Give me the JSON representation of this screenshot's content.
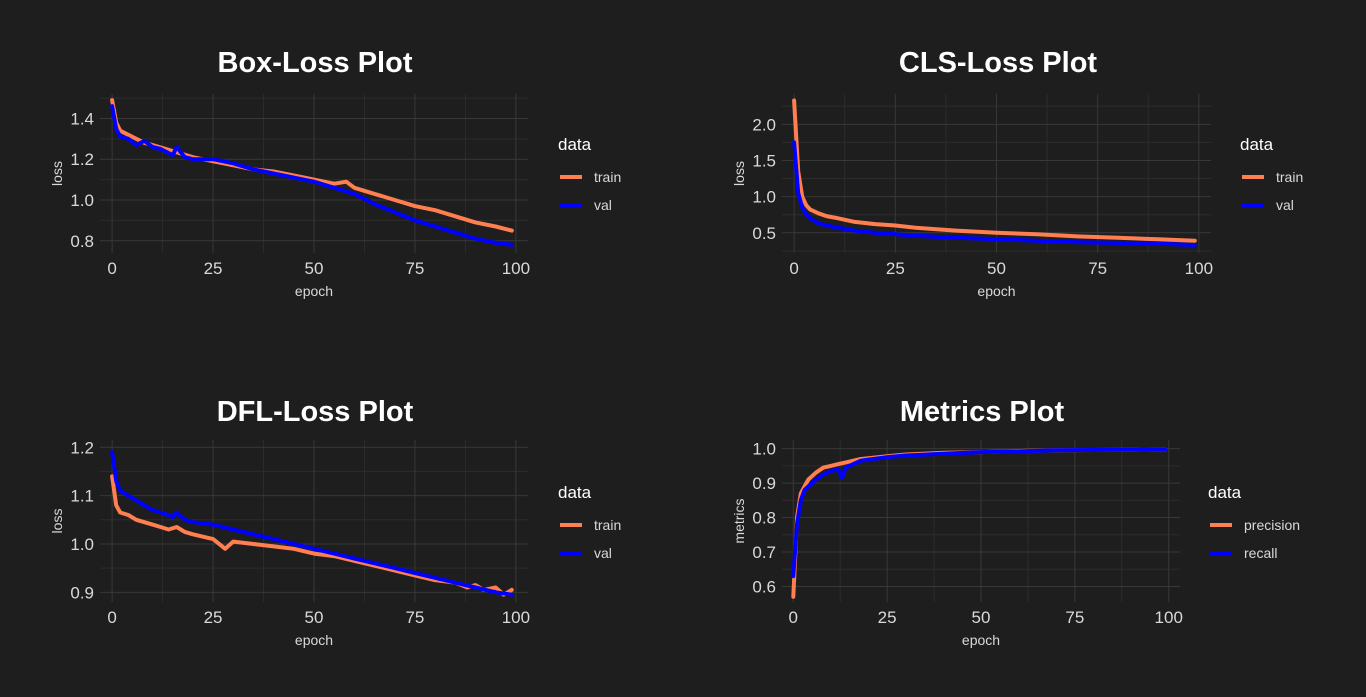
{
  "chart_data": [
    {
      "type": "line",
      "title": "Box-Loss Plot",
      "xlabel": "epoch",
      "ylabel": "loss",
      "xlim": [
        -3,
        103
      ],
      "ylim": [
        0.74,
        1.52
      ],
      "xticks": [
        0,
        25,
        50,
        75,
        100
      ],
      "yticks": [
        0.8,
        1.0,
        1.2,
        1.4
      ],
      "yticklabels": [
        "0.8",
        "1.0",
        "1.2",
        "1.4"
      ],
      "grid": true,
      "legend": {
        "title": "data",
        "placement": "right"
      },
      "series": [
        {
          "name": "train",
          "color": "#ff7f50",
          "x": [
            0,
            1,
            2,
            4,
            6,
            8,
            10,
            15,
            20,
            25,
            30,
            35,
            40,
            45,
            50,
            55,
            58,
            60,
            65,
            70,
            75,
            80,
            85,
            90,
            95,
            99
          ],
          "y": [
            1.49,
            1.38,
            1.34,
            1.32,
            1.3,
            1.28,
            1.27,
            1.24,
            1.21,
            1.19,
            1.17,
            1.15,
            1.14,
            1.12,
            1.1,
            1.08,
            1.09,
            1.06,
            1.03,
            1.0,
            0.97,
            0.95,
            0.92,
            0.89,
            0.87,
            0.85
          ]
        },
        {
          "name": "val",
          "color": "#0000ff",
          "x": [
            0,
            1,
            2,
            4,
            6,
            8,
            10,
            12,
            15,
            16,
            18,
            20,
            25,
            30,
            35,
            40,
            45,
            50,
            55,
            60,
            65,
            70,
            75,
            80,
            85,
            90,
            95,
            99
          ],
          "y": [
            1.46,
            1.35,
            1.31,
            1.3,
            1.27,
            1.29,
            1.26,
            1.25,
            1.22,
            1.26,
            1.21,
            1.2,
            1.2,
            1.18,
            1.15,
            1.13,
            1.11,
            1.09,
            1.06,
            1.03,
            0.98,
            0.94,
            0.9,
            0.87,
            0.84,
            0.81,
            0.79,
            0.78
          ]
        }
      ]
    },
    {
      "type": "line",
      "title": "CLS-Loss Plot",
      "xlabel": "epoch",
      "ylabel": "loss",
      "xlim": [
        -3,
        103
      ],
      "ylim": [
        0.22,
        2.42
      ],
      "xticks": [
        0,
        25,
        50,
        75,
        100
      ],
      "yticks": [
        0.5,
        1.0,
        1.5,
        2.0
      ],
      "yticklabels": [
        "0.5",
        "1.0",
        "1.5",
        "2.0"
      ],
      "grid": true,
      "legend": {
        "title": "data",
        "placement": "right"
      },
      "series": [
        {
          "name": "train",
          "color": "#ff7f50",
          "x": [
            0,
            1,
            2,
            3,
            4,
            6,
            8,
            10,
            15,
            20,
            25,
            30,
            40,
            50,
            60,
            70,
            80,
            90,
            99
          ],
          "y": [
            2.33,
            1.35,
            1.0,
            0.88,
            0.82,
            0.77,
            0.73,
            0.71,
            0.65,
            0.62,
            0.6,
            0.57,
            0.53,
            0.5,
            0.48,
            0.45,
            0.43,
            0.41,
            0.39
          ]
        },
        {
          "name": "val",
          "color": "#0000ff",
          "x": [
            0,
            1,
            2,
            3,
            4,
            6,
            8,
            10,
            15,
            20,
            25,
            30,
            40,
            50,
            60,
            70,
            80,
            90,
            99
          ],
          "y": [
            1.75,
            1.05,
            0.85,
            0.75,
            0.7,
            0.63,
            0.6,
            0.58,
            0.53,
            0.5,
            0.48,
            0.46,
            0.43,
            0.41,
            0.39,
            0.37,
            0.36,
            0.35,
            0.33
          ]
        }
      ]
    },
    {
      "type": "line",
      "title": "DFL-Loss Plot",
      "xlabel": "epoch",
      "ylabel": "loss",
      "xlim": [
        -3,
        103
      ],
      "ylim": [
        0.88,
        1.215
      ],
      "xticks": [
        0,
        25,
        50,
        75,
        100
      ],
      "yticks": [
        0.9,
        1.0,
        1.1,
        1.2
      ],
      "yticklabels": [
        "0.9",
        "1.0",
        "1.1",
        "1.2"
      ],
      "grid": true,
      "legend": {
        "title": "data",
        "placement": "right"
      },
      "series": [
        {
          "name": "train",
          "color": "#ff7f50",
          "x": [
            0,
            1,
            2,
            4,
            6,
            8,
            10,
            12,
            14,
            16,
            18,
            20,
            25,
            28,
            30,
            35,
            40,
            45,
            50,
            55,
            60,
            65,
            70,
            75,
            80,
            85,
            88,
            90,
            92,
            95,
            97,
            99
          ],
          "y": [
            1.14,
            1.08,
            1.065,
            1.06,
            1.05,
            1.045,
            1.04,
            1.035,
            1.03,
            1.035,
            1.025,
            1.02,
            1.01,
            0.99,
            1.005,
            1.0,
            0.995,
            0.99,
            0.98,
            0.975,
            0.965,
            0.955,
            0.945,
            0.935,
            0.925,
            0.92,
            0.91,
            0.915,
            0.905,
            0.91,
            0.895,
            0.905
          ]
        },
        {
          "name": "val",
          "color": "#0000ff",
          "x": [
            0,
            1,
            2,
            4,
            6,
            8,
            10,
            12,
            14,
            15,
            16,
            18,
            20,
            25,
            30,
            35,
            40,
            45,
            50,
            55,
            60,
            65,
            70,
            75,
            80,
            85,
            90,
            95,
            99
          ],
          "y": [
            1.19,
            1.13,
            1.11,
            1.1,
            1.09,
            1.08,
            1.07,
            1.065,
            1.06,
            1.055,
            1.065,
            1.05,
            1.045,
            1.04,
            1.03,
            1.02,
            1.01,
            1.0,
            0.99,
            0.98,
            0.97,
            0.96,
            0.95,
            0.94,
            0.93,
            0.92,
            0.91,
            0.9,
            0.895
          ]
        }
      ]
    },
    {
      "type": "line",
      "title": "Metrics Plot",
      "xlabel": "epoch",
      "ylabel": "metrics",
      "xlim": [
        -3,
        103
      ],
      "ylim": [
        0.555,
        1.025
      ],
      "xticks": [
        0,
        25,
        50,
        75,
        100
      ],
      "yticks": [
        0.6,
        0.7,
        0.8,
        0.9,
        1.0
      ],
      "yticklabels": [
        "0.6",
        "0.7",
        "0.8",
        "0.9",
        "1.0"
      ],
      "grid": true,
      "legend": {
        "title": "data",
        "placement": "right"
      },
      "series": [
        {
          "name": "precision",
          "color": "#ff7f50",
          "x": [
            0,
            1,
            2,
            3,
            4,
            5,
            6,
            8,
            10,
            12,
            14,
            16,
            18,
            20,
            25,
            30,
            40,
            50,
            60,
            70,
            80,
            90,
            99
          ],
          "y": [
            0.57,
            0.8,
            0.87,
            0.89,
            0.91,
            0.92,
            0.93,
            0.945,
            0.95,
            0.955,
            0.96,
            0.965,
            0.97,
            0.972,
            0.978,
            0.983,
            0.988,
            0.99,
            0.993,
            0.995,
            0.996,
            0.997,
            0.998
          ]
        },
        {
          "name": "recall",
          "color": "#0000ff",
          "x": [
            0,
            1,
            2,
            3,
            4,
            5,
            6,
            8,
            10,
            12,
            13,
            14,
            16,
            18,
            20,
            25,
            30,
            40,
            50,
            60,
            70,
            80,
            90,
            99
          ],
          "y": [
            0.63,
            0.78,
            0.85,
            0.88,
            0.89,
            0.9,
            0.91,
            0.925,
            0.935,
            0.94,
            0.915,
            0.945,
            0.955,
            0.965,
            0.968,
            0.975,
            0.98,
            0.985,
            0.99,
            0.992,
            0.995,
            0.996,
            0.997,
            0.998
          ]
        }
      ]
    }
  ]
}
